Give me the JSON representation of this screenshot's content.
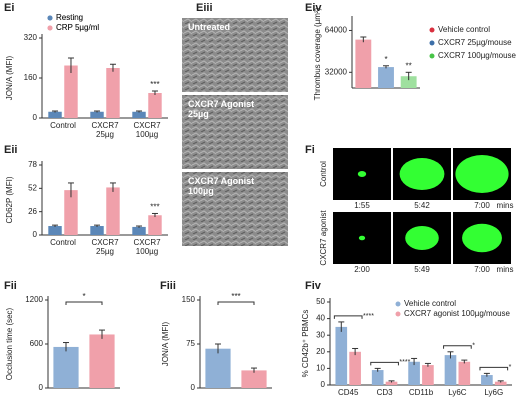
{
  "chart_data": [
    {
      "type": "bar",
      "label": "Ei",
      "ylabel": "JON/A (MFI)",
      "categories": [
        "Control",
        "CXCR7\n25µg",
        "CXCR7\n100µg"
      ],
      "series": [
        {
          "name": "Resting",
          "color": "#5b87b8",
          "values": [
            25,
            25,
            25
          ],
          "errors": [
            3,
            3,
            3
          ]
        },
        {
          "name": "CRP 5µg/ml",
          "color": "#f0a0aa",
          "values": [
            210,
            200,
            100
          ],
          "errors": [
            30,
            15,
            8
          ]
        }
      ],
      "significance": [
        null,
        null,
        "***"
      ],
      "ylim": [
        0,
        320
      ],
      "yticks": [
        0,
        160,
        320
      ],
      "legend": "top-left"
    },
    {
      "type": "bar",
      "label": "Eii",
      "ylabel": "CD62P (MFI)",
      "categories": [
        "Control",
        "CXCR7\n25µg",
        "CXCR7\n100µg"
      ],
      "series": [
        {
          "name": "Resting",
          "color": "#5b87b8",
          "values": [
            10,
            10,
            9
          ],
          "errors": [
            1,
            1,
            1
          ]
        },
        {
          "name": "CRP 5µg/ml",
          "color": "#f0a0aa",
          "values": [
            50,
            53,
            22
          ],
          "errors": [
            8,
            5,
            2
          ]
        }
      ],
      "significance": [
        null,
        null,
        "***"
      ],
      "ylim": [
        0,
        78
      ],
      "yticks": [
        0,
        26,
        52,
        78
      ]
    },
    {
      "type": "bar",
      "label": "Eiv",
      "ylabel": "Thrombus coverage (µm²)",
      "categories": [
        "Vehicle control",
        "CXCR7 25µg/mouse",
        "CXCR7 100µg/mouse"
      ],
      "values": [
        57000,
        36000,
        29000
      ],
      "errors": [
        2000,
        1000,
        3000
      ],
      "colors": [
        "#f0a0aa",
        "#8fb0d6",
        "#9fe09f"
      ],
      "legend_colors": [
        "#d9303f",
        "#3d6fa8",
        "#47c447"
      ],
      "significance": [
        null,
        "*",
        "**"
      ],
      "ylim": [
        20000,
        72000
      ],
      "yticks": [
        32000,
        64000
      ],
      "legend": "right"
    },
    {
      "type": "bar",
      "label": "Fii",
      "ylabel": "Occlusion time (sec)",
      "values": [
        560,
        730
      ],
      "errors": [
        60,
        60
      ],
      "colors": [
        "#8fb0d6",
        "#f0a0aa"
      ],
      "significance": "*",
      "ylim": [
        0,
        1200
      ],
      "yticks": [
        0,
        600,
        1200
      ]
    },
    {
      "type": "bar",
      "label": "Fiii",
      "ylabel": "JON/A (MFI)",
      "values": [
        67,
        30
      ],
      "errors": [
        8,
        4
      ],
      "colors": [
        "#8fb0d6",
        "#f0a0aa"
      ],
      "significance": "***",
      "ylim": [
        0,
        150
      ],
      "yticks": [
        0,
        75,
        150
      ]
    },
    {
      "type": "bar",
      "label": "Fiv",
      "ylabel": "% CD42b⁺ PBMCs",
      "categories": [
        "CD45",
        "CD3",
        "CD11b",
        "Ly6C",
        "Ly6G"
      ],
      "series": [
        {
          "name": "Vehicle control",
          "color": "#8fb0d6",
          "values": [
            35,
            9,
            14,
            18,
            6
          ],
          "errors": [
            3,
            1,
            2,
            2,
            1
          ]
        },
        {
          "name": "CXCR7 agonist 100µg/mouse",
          "color": "#f0a0aa",
          "values": [
            20,
            2,
            12,
            14,
            2
          ],
          "errors": [
            2,
            0.5,
            1,
            1,
            0.5
          ]
        }
      ],
      "significance": [
        "****",
        "****",
        null,
        "*",
        "*"
      ],
      "ylim": [
        0,
        50
      ],
      "yticks": [
        0,
        10,
        20,
        30,
        40,
        50
      ],
      "legend": "top-right"
    }
  ],
  "micrographs": {
    "label": "Eiii",
    "frames": [
      "Untreated",
      "CXCR7 Agonist\n25µg",
      "CXCR7 Agonist\n100µg"
    ]
  },
  "thrombus_video": {
    "label": "Fi",
    "rows": [
      "Control",
      "CXCR7 agonist"
    ],
    "times": [
      [
        "1:55",
        "5:42",
        "7:00"
      ],
      [
        "2:00",
        "5:49",
        "7:00"
      ]
    ],
    "unit": "mins"
  }
}
